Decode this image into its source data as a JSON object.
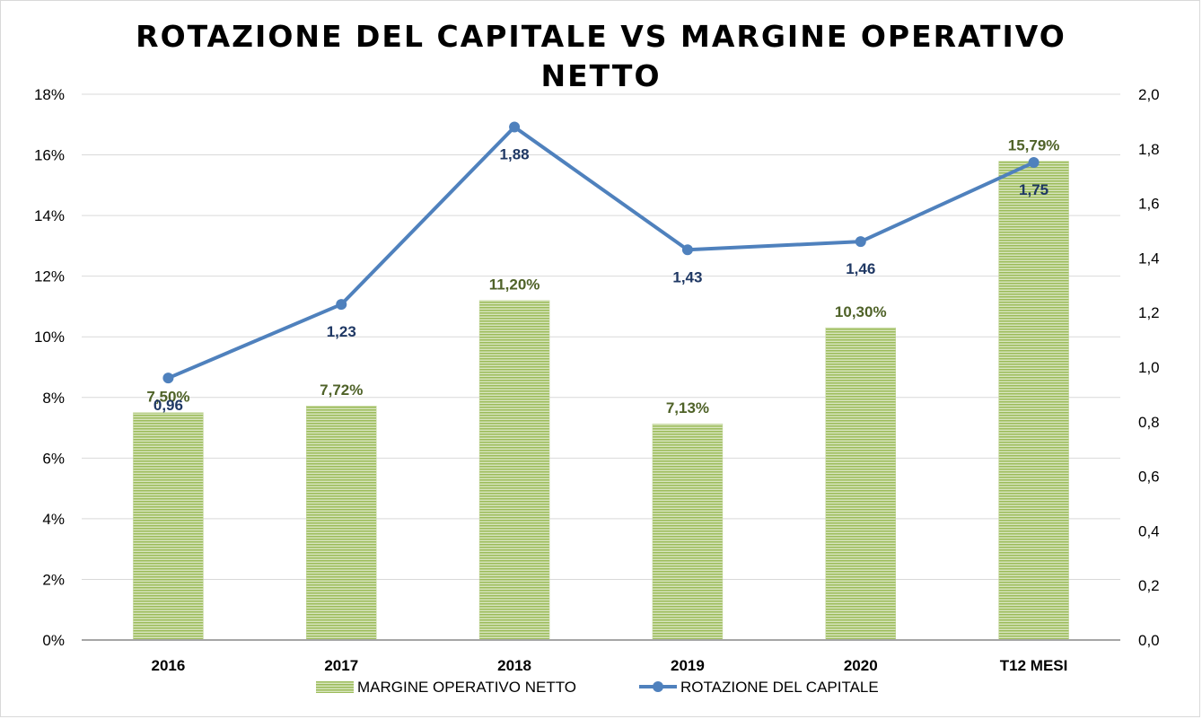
{
  "chart_data": {
    "type": "bar",
    "title_line1": "ROTAZIONE DEL CAPITALE VS MARGINE OPERATIVO",
    "title_line2": "NETTO",
    "categories": [
      "2016",
      "2017",
      "2018",
      "2019",
      "2020",
      "T12 MESI"
    ],
    "series": [
      {
        "name": "MARGINE OPERATIVO  NETTO",
        "type": "bar",
        "axis": "left",
        "values": [
          7.5,
          7.72,
          11.2,
          7.13,
          10.3,
          15.79
        ],
        "labels": [
          "7,50%",
          "7,72%",
          "11,20%",
          "7,13%",
          "10,30%",
          "15,79%"
        ],
        "color": "#9bbb59",
        "label_color": "#4f6228"
      },
      {
        "name": "ROTAZIONE DEL CAPITALE",
        "type": "line",
        "axis": "right",
        "values": [
          0.96,
          1.23,
          1.88,
          1.43,
          1.46,
          1.75
        ],
        "labels": [
          "0,96",
          "1,23",
          "1,88",
          "1,43",
          "1,46",
          "1,75"
        ],
        "color": "#4f81bd",
        "label_color": "#1f3864"
      }
    ],
    "y_left": {
      "min": 0,
      "max": 18,
      "step": 2,
      "tick_labels": [
        "0%",
        "2%",
        "4%",
        "6%",
        "8%",
        "10%",
        "12%",
        "14%",
        "16%",
        "18%"
      ]
    },
    "y_right": {
      "min": 0,
      "max": 2.0,
      "step": 0.2,
      "tick_labels": [
        "0,0",
        "0,2",
        "0,4",
        "0,6",
        "0,8",
        "1,0",
        "1,2",
        "1,4",
        "1,6",
        "1,8",
        "2,0"
      ]
    },
    "grid": true,
    "legend_position": "bottom"
  }
}
